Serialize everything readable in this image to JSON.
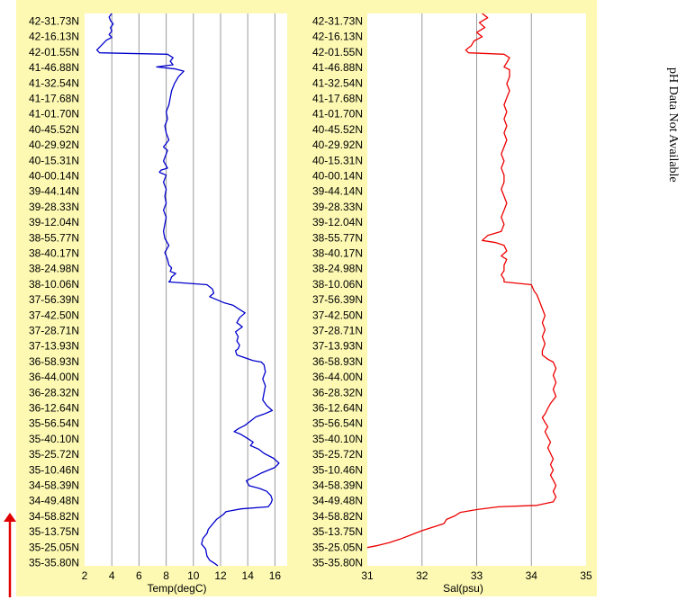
{
  "side_note": "pH Data Not Available",
  "colors": {
    "temp_line": "#0000cc",
    "sal_line": "#ee0000",
    "panel_bg": "#fdf9b3",
    "grid": "#9a9a9a",
    "arrow": "#e00000"
  },
  "chart_data": [
    {
      "type": "line",
      "xlabel": "Temp(degC)",
      "ylabel": "",
      "xlim": [
        2,
        16.9
      ],
      "xticks": [
        "2",
        "4",
        "6",
        "8",
        "10",
        "12",
        "14",
        "16"
      ],
      "yticks": [
        "42-31.73N",
        "42-16.13N",
        "42-01.55N",
        "41-46.88N",
        "41-32.54N",
        "41-17.68N",
        "41-01.70N",
        "40-45.52N",
        "40-29.92N",
        "40-15.31N",
        "40-00.14N",
        "39-44.14N",
        "39-28.33N",
        "39-12.04N",
        "38-55.77N",
        "38-40.17N",
        "38-24.98N",
        "38-10.06N",
        "37-56.39N",
        "37-42.50N",
        "37-28.71N",
        "37-13.93N",
        "36-58.93N",
        "36-44.00N",
        "36-28.32N",
        "36-12.64N",
        "35-56.54N",
        "35-40.10N",
        "35-25.72N",
        "35-10.46N",
        "34-58.39N",
        "34-49.48N",
        "34-58.82N",
        "35-13.75N",
        "35-25.05N",
        "35-35.80N"
      ],
      "grid": true,
      "series": [
        {
          "points": [
            [
              4.0,
              0
            ],
            [
              3.8,
              0.5
            ],
            [
              3.9,
              1
            ],
            [
              4.1,
              1.5
            ],
            [
              3.9,
              2
            ],
            [
              4.0,
              2.5
            ],
            [
              3.8,
              3
            ],
            [
              4.0,
              3.4
            ],
            [
              3.6,
              3.8
            ],
            [
              3.2,
              4.6
            ],
            [
              2.9,
              5.2
            ],
            [
              3.1,
              5.6
            ],
            [
              8.1,
              5.8
            ],
            [
              8.5,
              6.3
            ],
            [
              8.3,
              6.8
            ],
            [
              8.5,
              7.3
            ],
            [
              7.3,
              7.6
            ],
            [
              8.7,
              7.9
            ],
            [
              9.3,
              8.2
            ],
            [
              8.9,
              9
            ],
            [
              8.6,
              10
            ],
            [
              8.4,
              11
            ],
            [
              8.3,
              12
            ],
            [
              8.2,
              13
            ],
            [
              8.0,
              14
            ],
            [
              8.1,
              15
            ],
            [
              7.9,
              16
            ],
            [
              8.0,
              17
            ],
            [
              8.2,
              18
            ],
            [
              7.8,
              19
            ],
            [
              8.1,
              19.5
            ],
            [
              8.0,
              20
            ],
            [
              7.8,
              21
            ],
            [
              8.1,
              22
            ],
            [
              7.6,
              22.3
            ],
            [
              7.5,
              22.6
            ],
            [
              8.0,
              23
            ],
            [
              7.8,
              24
            ],
            [
              8.0,
              25
            ],
            [
              7.9,
              26
            ],
            [
              8.0,
              27
            ],
            [
              7.8,
              28
            ],
            [
              8.0,
              29
            ],
            [
              7.9,
              30
            ],
            [
              7.8,
              31
            ],
            [
              7.9,
              32
            ],
            [
              8.2,
              33
            ],
            [
              7.9,
              34
            ],
            [
              8.1,
              35
            ],
            [
              8.2,
              35.8
            ],
            [
              8.4,
              36.2
            ],
            [
              8.3,
              36.7
            ],
            [
              8.7,
              37
            ],
            [
              8.4,
              37.5
            ],
            [
              8.3,
              38
            ],
            [
              8.2,
              38.2
            ],
            [
              11.0,
              38.6
            ],
            [
              11.4,
              39.2
            ],
            [
              11.5,
              39.8
            ],
            [
              11.2,
              40.3
            ],
            [
              11.8,
              40.8
            ],
            [
              12.3,
              41.2
            ],
            [
              12.9,
              41.5
            ],
            [
              13.3,
              42
            ],
            [
              13.8,
              42.6
            ],
            [
              13.4,
              43.3
            ],
            [
              13.2,
              44
            ],
            [
              13.6,
              44.6
            ],
            [
              13.1,
              45.3
            ],
            [
              13.3,
              46
            ],
            [
              13.2,
              46.6
            ],
            [
              13.4,
              47.2
            ],
            [
              13.3,
              47.7
            ],
            [
              13.1,
              48
            ],
            [
              13.2,
              48.6
            ],
            [
              13.8,
              49
            ],
            [
              14.4,
              49.4
            ],
            [
              15.0,
              49.6
            ],
            [
              15.2,
              50
            ],
            [
              15.3,
              51
            ],
            [
              15.1,
              52
            ],
            [
              15.3,
              53
            ],
            [
              15.2,
              54
            ],
            [
              15.1,
              55
            ],
            [
              15.4,
              55.8
            ],
            [
              15.8,
              56.5
            ],
            [
              15.2,
              57
            ],
            [
              14.6,
              57.4
            ],
            [
              14.2,
              58
            ],
            [
              13.8,
              58.6
            ],
            [
              13.3,
              59.1
            ],
            [
              13.0,
              59.5
            ],
            [
              13.5,
              59.9
            ],
            [
              14.0,
              60.5
            ],
            [
              14.4,
              61
            ],
            [
              14.2,
              61.5
            ],
            [
              14.8,
              62
            ],
            [
              15.2,
              62.6
            ],
            [
              15.9,
              63.3
            ],
            [
              16.3,
              64
            ],
            [
              16.0,
              64.6
            ],
            [
              15.0,
              65.4
            ],
            [
              14.4,
              66
            ],
            [
              13.9,
              66.5
            ],
            [
              14.1,
              67.2
            ],
            [
              14.9,
              67.6
            ],
            [
              15.4,
              68
            ],
            [
              15.7,
              68.6
            ],
            [
              15.8,
              69.2
            ],
            [
              15.7,
              69.7
            ],
            [
              15.5,
              70.2
            ],
            [
              13.5,
              70.5
            ],
            [
              12.4,
              70.9
            ],
            [
              12.2,
              71.3
            ],
            [
              11.7,
              72
            ],
            [
              11.4,
              72.7
            ],
            [
              11.1,
              73.4
            ],
            [
              11.0,
              74
            ],
            [
              10.7,
              74.7
            ],
            [
              10.6,
              75.5
            ],
            [
              10.9,
              76.2
            ],
            [
              11.0,
              77.2
            ],
            [
              11.2,
              77.8
            ],
            [
              11.6,
              78.3
            ],
            [
              11.8,
              78.6
            ]
          ]
        }
      ]
    },
    {
      "type": "line",
      "xlabel": "Sal(psu)",
      "ylabel": "",
      "xlim": [
        31,
        35
      ],
      "xticks": [
        "31",
        "32",
        "33",
        "34",
        "35"
      ],
      "yticks": [
        "42-31.73N",
        "42-16.13N",
        "42-01.55N",
        "41-46.88N",
        "41-32.54N",
        "41-17.68N",
        "41-01.70N",
        "40-45.52N",
        "40-29.92N",
        "40-15.31N",
        "40-00.14N",
        "39-44.14N",
        "39-28.33N",
        "39-12.04N",
        "38-55.77N",
        "38-40.17N",
        "38-24.98N",
        "38-10.06N",
        "37-56.39N",
        "37-42.50N",
        "37-28.71N",
        "37-13.93N",
        "36-58.93N",
        "36-44.00N",
        "36-28.32N",
        "36-12.64N",
        "35-56.54N",
        "35-40.10N",
        "35-25.72N",
        "35-10.46N",
        "34-58.39N",
        "34-49.48N",
        "34-58.82N",
        "35-13.75N",
        "35-25.05N",
        "35-35.80N"
      ],
      "grid": true,
      "series": [
        {
          "points": [
            [
              33.1,
              0
            ],
            [
              33.2,
              0.6
            ],
            [
              33.05,
              1.3
            ],
            [
              33.15,
              2
            ],
            [
              33.0,
              2.7
            ],
            [
              33.1,
              3.3
            ],
            [
              32.95,
              3.9
            ],
            [
              32.9,
              4.6
            ],
            [
              32.8,
              5.2
            ],
            [
              32.85,
              5.6
            ],
            [
              33.5,
              5.8
            ],
            [
              33.6,
              6.3
            ],
            [
              33.55,
              7
            ],
            [
              33.5,
              7.6
            ],
            [
              33.6,
              8
            ],
            [
              33.6,
              9
            ],
            [
              33.55,
              10
            ],
            [
              33.6,
              11
            ],
            [
              33.55,
              12
            ],
            [
              33.5,
              13
            ],
            [
              33.55,
              14
            ],
            [
              33.5,
              15
            ],
            [
              33.55,
              16
            ],
            [
              33.5,
              17
            ],
            [
              33.55,
              18
            ],
            [
              33.5,
              19
            ],
            [
              33.45,
              20
            ],
            [
              33.5,
              21
            ],
            [
              33.45,
              22
            ],
            [
              33.5,
              23
            ],
            [
              33.5,
              24
            ],
            [
              33.45,
              25
            ],
            [
              33.5,
              26
            ],
            [
              33.55,
              27
            ],
            [
              33.5,
              28
            ],
            [
              33.45,
              29
            ],
            [
              33.5,
              30
            ],
            [
              33.45,
              31
            ],
            [
              33.2,
              31.6
            ],
            [
              33.1,
              32.3
            ],
            [
              33.35,
              32.6
            ],
            [
              33.5,
              33
            ],
            [
              33.55,
              33.8
            ],
            [
              33.45,
              34.5
            ],
            [
              33.55,
              35
            ],
            [
              33.5,
              35.8
            ],
            [
              33.5,
              36.6
            ],
            [
              33.45,
              37.2
            ],
            [
              33.5,
              37.8
            ],
            [
              33.5,
              38.2
            ],
            [
              34.0,
              38.6
            ],
            [
              34.05,
              39.5
            ],
            [
              34.1,
              40
            ],
            [
              34.15,
              41
            ],
            [
              34.2,
              42
            ],
            [
              34.25,
              43
            ],
            [
              34.2,
              44
            ],
            [
              34.25,
              45
            ],
            [
              34.2,
              46
            ],
            [
              34.25,
              47
            ],
            [
              34.2,
              48
            ],
            [
              34.2,
              48.6
            ],
            [
              34.3,
              49.2
            ],
            [
              34.4,
              49.6
            ],
            [
              34.45,
              50.5
            ],
            [
              34.4,
              51.5
            ],
            [
              34.45,
              52.5
            ],
            [
              34.4,
              53.5
            ],
            [
              34.45,
              54.5
            ],
            [
              34.35,
              55.5
            ],
            [
              34.3,
              56.2
            ],
            [
              34.25,
              57
            ],
            [
              34.2,
              57.5
            ],
            [
              34.25,
              58.2
            ],
            [
              34.3,
              58.8
            ],
            [
              34.25,
              59.5
            ],
            [
              34.3,
              60.3
            ],
            [
              34.35,
              61
            ],
            [
              34.3,
              61.8
            ],
            [
              34.35,
              62.6
            ],
            [
              34.4,
              63.4
            ],
            [
              34.35,
              64.2
            ],
            [
              34.4,
              65
            ],
            [
              34.35,
              65.7
            ],
            [
              34.4,
              66.4
            ],
            [
              34.45,
              67.2
            ],
            [
              34.4,
              68
            ],
            [
              34.45,
              68.8
            ],
            [
              34.4,
              69.5
            ],
            [
              34.1,
              70
            ],
            [
              33.4,
              70.2
            ],
            [
              33.0,
              70.6
            ],
            [
              32.7,
              71
            ],
            [
              32.6,
              71.5
            ],
            [
              32.45,
              72
            ],
            [
              32.4,
              72.6
            ],
            [
              32.2,
              73.1
            ],
            [
              32.0,
              73.6
            ],
            [
              31.8,
              74.2
            ],
            [
              31.6,
              74.8
            ],
            [
              31.4,
              75.3
            ],
            [
              31.2,
              75.7
            ],
            [
              31.0,
              76
            ]
          ]
        }
      ]
    }
  ]
}
